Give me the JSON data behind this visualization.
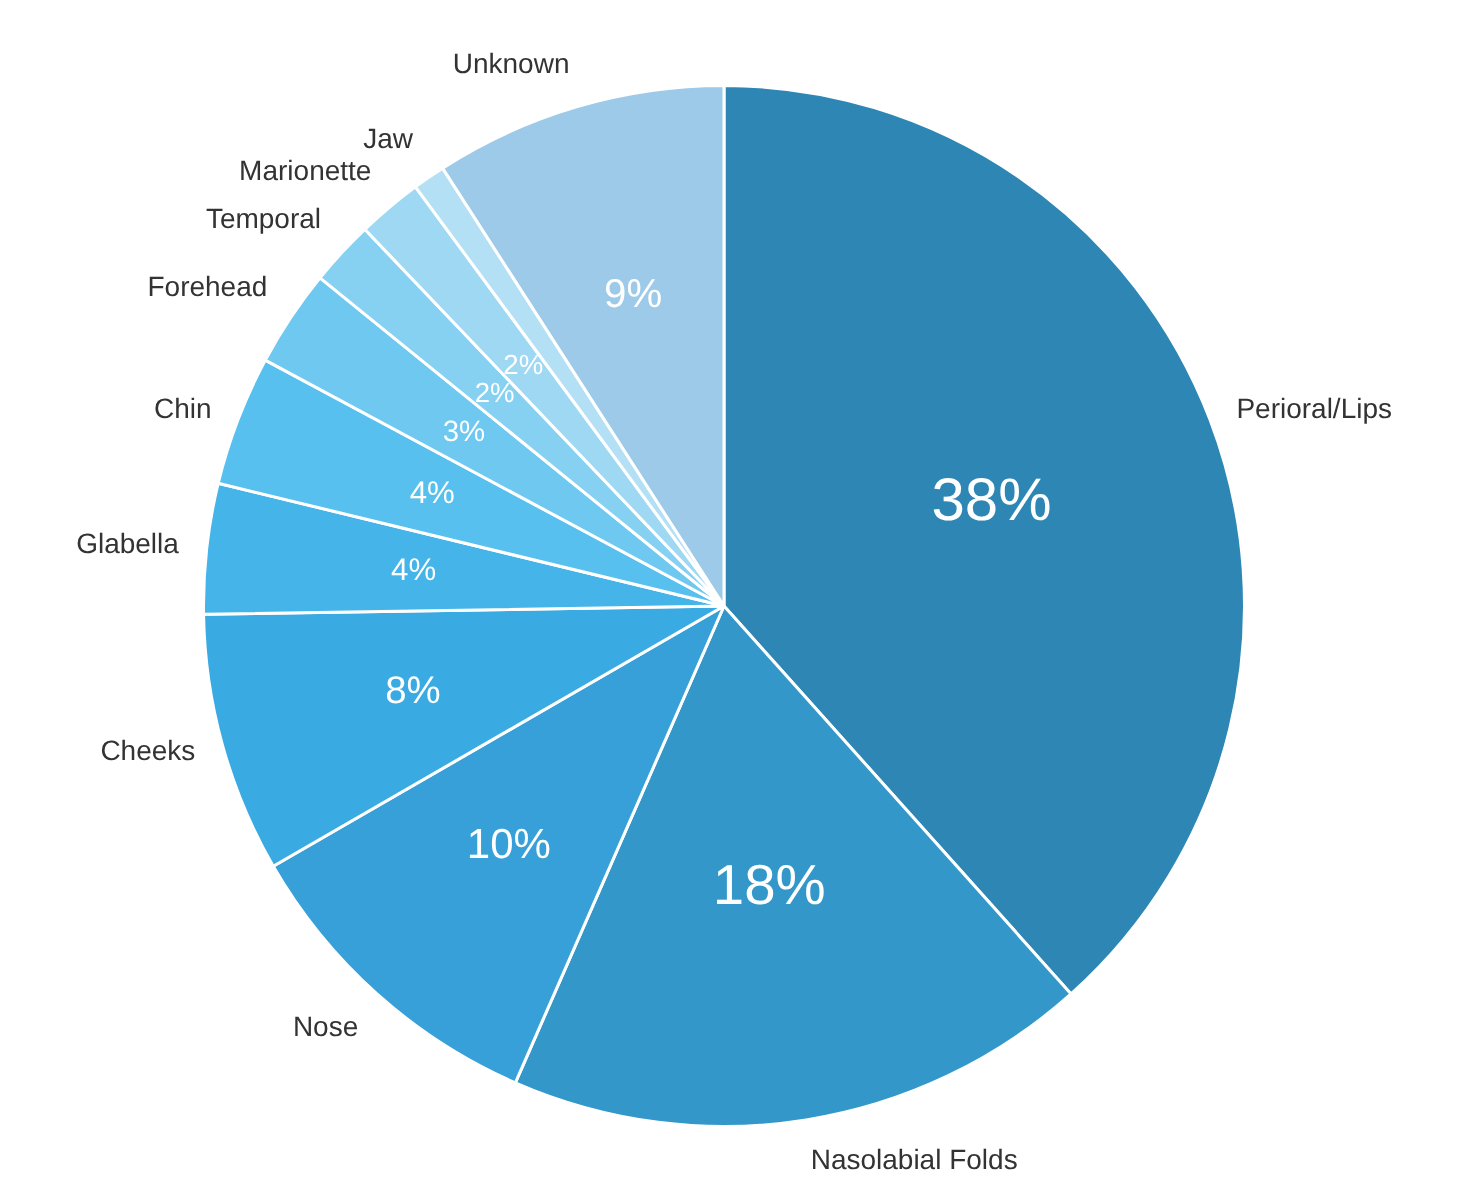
{
  "chart_data": {
    "type": "pie",
    "categories": [
      "Perioral/Lips",
      "Nasolabial Folds",
      "Nose",
      "Cheeks",
      "Glabella",
      "Chin",
      "Forehead",
      "Temporal",
      "Marionette",
      "Jaw",
      "Unknown"
    ],
    "values": [
      38,
      18,
      10,
      8,
      4,
      4,
      3,
      2,
      2,
      1,
      9
    ],
    "value_labels": [
      "38%",
      "18%",
      "10%",
      "8%",
      "4%",
      "4%",
      "3%",
      "2%",
      "2%",
      null,
      "9%"
    ],
    "colors": [
      "#2e86b4",
      "#3398c9",
      "#37a0d8",
      "#3aaae2",
      "#44b4e9",
      "#58c0ef",
      "#6ec8f0",
      "#86d0f1",
      "#9ed8f3",
      "#b4e0f5",
      "#9ccae8"
    ],
    "legend": false
  }
}
